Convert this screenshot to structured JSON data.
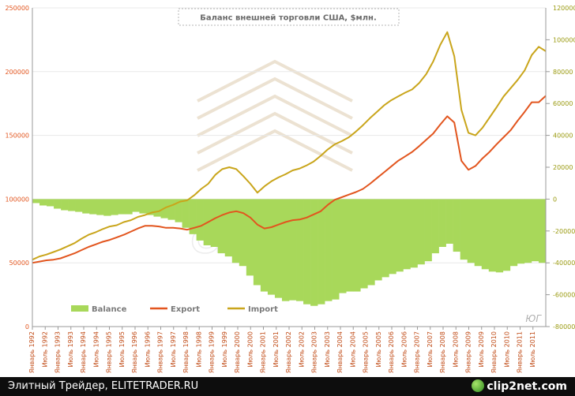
{
  "colors": {
    "balance": "#a8d85a",
    "export": "#e2551e",
    "import": "#c9a51b",
    "left_axis": "#e2551e",
    "right_axis": "#9a9a10",
    "grid": "#e8e8e8"
  },
  "footer": {
    "text": "Элитный Трейдер, ELITETRADER.RU",
    "logo": "clip2net.com"
  },
  "chart_data": {
    "type": "bar+line",
    "title": "Баланс внешней торговли США, $млн.",
    "watermark": "alpari",
    "corner_mark": "ЮГ",
    "left_axis": {
      "range": [
        0,
        250000
      ],
      "ticks": [
        "0",
        "50000",
        "100000",
        "150000",
        "200000",
        "250000"
      ]
    },
    "right_axis": {
      "range": [
        -80000,
        120000
      ],
      "ticks": [
        "-80000",
        "-60000",
        "-40000",
        "-20000",
        "0",
        "20000",
        "40000",
        "60000",
        "80000",
        "100000",
        "120000"
      ]
    },
    "x_labels": [
      "Январь 1992",
      "Июль 1992",
      "Январь 1993",
      "Июль 1993",
      "Январь 1994",
      "Июль 1994",
      "Январь 1995",
      "Июль 1995",
      "Январь 1996",
      "Июль 1996",
      "Январь 1997",
      "Июль 1997",
      "Январь 1998",
      "Июль 1998",
      "Январь 1999",
      "Июль 1999",
      "Январь 2000",
      "Июль 2000",
      "Январь 2001",
      "Июль 2001",
      "Январь 2002",
      "Июль 2002",
      "Январь 2003",
      "Июль 2003",
      "Январь 2004",
      "Июль 2004",
      "Январь 2005",
      "Июль 2005",
      "Январь 2006",
      "Июль 2006",
      "Январь 2007",
      "Июль 2007",
      "Январь 2008",
      "Июль 2008",
      "Январь 2009",
      "Июль 2009",
      "Январь 2010",
      "Июль 2010",
      "Январь 2011",
      "Июль 2011"
    ],
    "series": [
      {
        "name": "Balance",
        "axis": "right",
        "kind": "bar",
        "values": [
          -2500,
          -4000,
          -4500,
          -6000,
          -7000,
          -7500,
          -8000,
          -9000,
          -9500,
          -10000,
          -10500,
          -10000,
          -9500,
          -9500,
          -8000,
          -9000,
          -10000,
          -11000,
          -12000,
          -13000,
          -14500,
          -18000,
          -22000,
          -26000,
          -29000,
          -30000,
          -34000,
          -36000,
          -40000,
          -42000,
          -48000,
          -54000,
          -58000,
          -60000,
          -62000,
          -64000,
          -63500,
          -64000,
          -66000,
          -67000,
          -66000,
          -64000,
          -63000,
          -59000,
          -58000,
          -58000,
          -56000,
          -54000,
          -51000,
          -49000,
          -47000,
          -45500,
          -44000,
          -43000,
          -41000,
          -39000,
          -34000,
          -30000,
          -28000,
          -33000,
          -38000,
          -40000,
          -42000,
          -44000,
          -45500,
          -46000,
          -45000,
          -42000,
          -40500,
          -40000,
          -39000,
          -40000
        ]
      },
      {
        "name": "Export",
        "axis": "left",
        "kind": "line",
        "values": [
          50000,
          51000,
          52000,
          52500,
          53500,
          55500,
          57500,
          60000,
          62500,
          64500,
          66500,
          68000,
          70000,
          72000,
          74500,
          77000,
          79000,
          79000,
          78500,
          77500,
          77500,
          77000,
          76000,
          77500,
          79000,
          82000,
          85000,
          87500,
          89500,
          90500,
          89000,
          85500,
          80000,
          77000,
          78000,
          80000,
          82000,
          83500,
          84000,
          85500,
          88000,
          90500,
          95500,
          99500,
          101500,
          103500,
          105500,
          108000,
          112000,
          116500,
          121000,
          125500,
          130000,
          133500,
          137000,
          141500,
          146500,
          151500,
          158500,
          165000,
          160000,
          130000,
          123000,
          126000,
          132000,
          137000,
          143000,
          148500,
          154000,
          161500,
          168500,
          176000,
          176000,
          181000
        ]
      },
      {
        "name": "Import",
        "axis": "left",
        "kind": "line",
        "values": [
          52500,
          55000,
          56500,
          58500,
          60500,
          63000,
          65500,
          69000,
          72000,
          74000,
          76500,
          78500,
          79500,
          82000,
          83500,
          86000,
          87500,
          89500,
          90500,
          93500,
          95500,
          98000,
          99000,
          103000,
          108000,
          112000,
          119000,
          123500,
          125000,
          123500,
          118000,
          112000,
          105000,
          110000,
          114000,
          117000,
          119500,
          122500,
          124000,
          126500,
          129500,
          134000,
          139000,
          143000,
          145500,
          148500,
          153000,
          158000,
          163500,
          168500,
          173500,
          177500,
          180500,
          183500,
          186000,
          191000,
          198000,
          208000,
          221000,
          231000,
          212000,
          170000,
          152000,
          150000,
          156000,
          164000,
          172000,
          180500,
          187000,
          193500,
          201000,
          213000,
          219500,
          216000
        ]
      }
    ],
    "legend": {
      "position": "bottom-left",
      "entries": [
        "Balance",
        "Export",
        "Import"
      ]
    }
  }
}
